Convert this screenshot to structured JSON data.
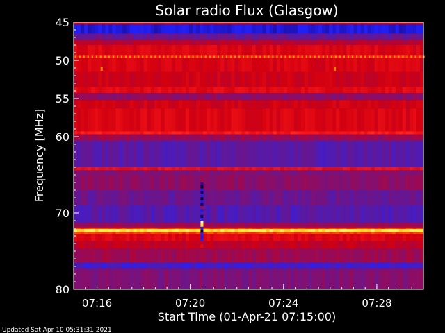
{
  "chart_data": {
    "type": "heatmap",
    "title": "Solar radio Flux (Glasgow)",
    "xlabel": "Start Time (01-Apr-21 07:15:00)",
    "ylabel": "Frequency [MHz]",
    "footer": "Updated Sat Apr 10 05:31:31 2021",
    "x_range_minutes": [
      0,
      15
    ],
    "y_range_mhz": [
      45,
      80
    ],
    "y_inverted": true,
    "x_ticks": [
      {
        "minute": 1,
        "label": "07:16"
      },
      {
        "minute": 5,
        "label": "07:20"
      },
      {
        "minute": 9,
        "label": "07:24"
      },
      {
        "minute": 13,
        "label": "07:28"
      }
    ],
    "y_ticks": [
      {
        "mhz": 45,
        "label": "45"
      },
      {
        "mhz": 50,
        "label": "50"
      },
      {
        "mhz": 55,
        "label": "55"
      },
      {
        "mhz": 60,
        "label": "60"
      },
      {
        "mhz": 70,
        "label": "70"
      },
      {
        "mhz": 80,
        "label": "80"
      }
    ],
    "colormap": [
      "#000000",
      "#1a0066",
      "#2222ff",
      "#5a1aa0",
      "#9a0a55",
      "#d00010",
      "#ff1a1a",
      "#ff7a00",
      "#ffee40",
      "#ffffff"
    ],
    "frequency_bands": [
      {
        "f0": 45.0,
        "f1": 45.3,
        "level": 0.55
      },
      {
        "f0": 45.3,
        "f1": 46.5,
        "level": 0.2
      },
      {
        "f0": 46.5,
        "f1": 47.3,
        "level": 0.35
      },
      {
        "f0": 47.3,
        "f1": 48.0,
        "level": 0.5
      },
      {
        "f0": 48.0,
        "f1": 49.3,
        "level": 0.58
      },
      {
        "f0": 49.3,
        "f1": 49.7,
        "level": 0.66
      },
      {
        "f0": 49.7,
        "f1": 51.5,
        "level": 0.57
      },
      {
        "f0": 51.5,
        "f1": 53.5,
        "level": 0.55
      },
      {
        "f0": 53.5,
        "f1": 54.3,
        "level": 0.6
      },
      {
        "f0": 54.3,
        "f1": 55.2,
        "level": 0.42
      },
      {
        "f0": 55.2,
        "f1": 56.3,
        "level": 0.55
      },
      {
        "f0": 56.3,
        "f1": 59.3,
        "level": 0.58
      },
      {
        "f0": 59.3,
        "f1": 59.7,
        "level": 0.65
      },
      {
        "f0": 59.7,
        "f1": 60.5,
        "level": 0.45
      },
      {
        "f0": 60.5,
        "f1": 64.0,
        "level": 0.33
      },
      {
        "f0": 64.0,
        "f1": 64.4,
        "level": 0.62
      },
      {
        "f0": 64.4,
        "f1": 65.0,
        "level": 0.4
      },
      {
        "f0": 65.0,
        "f1": 67.0,
        "level": 0.42
      },
      {
        "f0": 67.0,
        "f1": 69.0,
        "level": 0.36
      },
      {
        "f0": 69.0,
        "f1": 71.3,
        "level": 0.32
      },
      {
        "f0": 71.3,
        "f1": 71.9,
        "level": 0.45
      },
      {
        "f0": 71.9,
        "f1": 72.1,
        "level": 0.7
      },
      {
        "f0": 72.1,
        "f1": 72.5,
        "level": 0.88
      },
      {
        "f0": 72.5,
        "f1": 72.8,
        "level": 0.7
      },
      {
        "f0": 72.8,
        "f1": 73.7,
        "level": 0.58
      },
      {
        "f0": 73.7,
        "f1": 74.7,
        "level": 0.52
      },
      {
        "f0": 74.7,
        "f1": 76.5,
        "level": 0.45
      },
      {
        "f0": 76.5,
        "f1": 77.3,
        "level": 0.28
      },
      {
        "f0": 77.3,
        "f1": 80.0,
        "level": 0.4
      }
    ],
    "features": [
      {
        "kind": "vertical_burst",
        "minute": 5.5,
        "f0": 66.0,
        "f1": 74.5
      },
      {
        "kind": "dotted_line",
        "f": 49.5,
        "spacing_minutes": 0.18
      },
      {
        "kind": "spot",
        "minute": 1.2,
        "f": 51.1
      },
      {
        "kind": "spot",
        "minute": 11.2,
        "f": 51.1
      }
    ]
  }
}
